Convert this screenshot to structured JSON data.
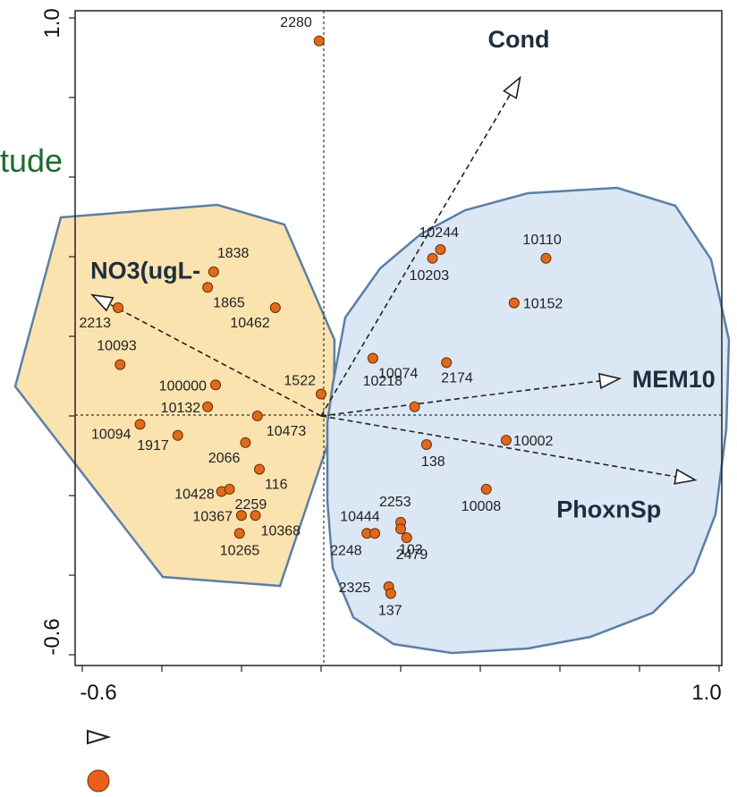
{
  "chart_data": {
    "type": "scatter",
    "title": "",
    "xlabel": "",
    "ylabel": "",
    "xlim": [
      -0.6,
      1.0
    ],
    "ylim": [
      -0.6,
      1.0
    ],
    "x_ticks": [
      "-0.6",
      "1.0"
    ],
    "y_ticks": [
      "-0.6",
      "1.0"
    ],
    "partial_label": "tude",
    "colors": {
      "point": "#e06a1b",
      "point_stroke": "#6b2c05",
      "group_left_fill": "#fbe3b0",
      "group_right_fill": "#dbe7f4",
      "hull_stroke": "#5b7fa6",
      "label_green": "#1e6b2f"
    },
    "arrows": [
      {
        "label": "Cond",
        "x": 0.5,
        "y": 0.85
      },
      {
        "label": "MEM10",
        "x": 0.75,
        "y": 0.094
      },
      {
        "label": "PhoxnSp",
        "x": 0.94,
        "y": -0.161
      },
      {
        "label": "NO3(ugL-",
        "x": -0.575,
        "y": 0.304
      }
    ],
    "sites": [
      {
        "label": "2280",
        "x": -0.005,
        "y": 0.942
      },
      {
        "label": "1838",
        "x": -0.27,
        "y": 0.362
      },
      {
        "label": "1865",
        "x": -0.285,
        "y": 0.323
      },
      {
        "label": "10462",
        "x": -0.115,
        "y": 0.272
      },
      {
        "label": "2213",
        "x": -0.51,
        "y": 0.272
      },
      {
        "label": "10093",
        "x": -0.505,
        "y": 0.129
      },
      {
        "label": "100000",
        "x": -0.265,
        "y": 0.078
      },
      {
        "label": "1522",
        "x": 0.0,
        "y": 0.055
      },
      {
        "label": "10132",
        "x": -0.285,
        "y": 0.023
      },
      {
        "label": "10094",
        "x": -0.455,
        "y": -0.021
      },
      {
        "label": "1917",
        "x": -0.36,
        "y": -0.049
      },
      {
        "label": "10473",
        "x": -0.16,
        "y": 0.0
      },
      {
        "label": "2066",
        "x": -0.19,
        "y": -0.067
      },
      {
        "label": "116",
        "x": -0.155,
        "y": -0.134
      },
      {
        "label": "10428",
        "x": -0.25,
        "y": -0.19
      },
      {
        "label": "2259",
        "x": -0.23,
        "y": -0.184
      },
      {
        "label": "10367",
        "x": -0.2,
        "y": -0.25
      },
      {
        "label": "10368",
        "x": -0.165,
        "y": -0.25
      },
      {
        "label": "10265",
        "x": -0.205,
        "y": -0.295
      },
      {
        "label": "10244",
        "x": 0.3,
        "y": 0.418
      },
      {
        "label": "10203",
        "x": 0.28,
        "y": 0.396
      },
      {
        "label": "10110",
        "x": 0.565,
        "y": 0.396
      },
      {
        "label": "10152",
        "x": 0.485,
        "y": 0.284
      },
      {
        "label": "10074",
        "x": 0.13,
        "y": 0.145
      },
      {
        "label": "2174",
        "x": 0.315,
        "y": 0.134
      },
      {
        "label": "10218",
        "x": 0.235,
        "y": 0.023
      },
      {
        "label": "10002",
        "x": 0.465,
        "y": -0.061
      },
      {
        "label": "138",
        "x": 0.265,
        "y": -0.072
      },
      {
        "label": "10008",
        "x": 0.415,
        "y": -0.184
      },
      {
        "label": "10444",
        "x": 0.115,
        "y": -0.295
      },
      {
        "label": "2253",
        "x": 0.2,
        "y": -0.267
      },
      {
        "label": "2248",
        "x": 0.135,
        "y": -0.295
      },
      {
        "label": "103",
        "x": 0.2,
        "y": -0.284
      },
      {
        "label": "2479",
        "x": 0.215,
        "y": -0.306
      },
      {
        "label": "2325",
        "x": 0.17,
        "y": -0.429
      },
      {
        "label": "137",
        "x": 0.175,
        "y": -0.446
      }
    ]
  },
  "legend": {
    "arrow_icon": "open-triangle-icon",
    "point_icon": "filled-circle-icon"
  }
}
